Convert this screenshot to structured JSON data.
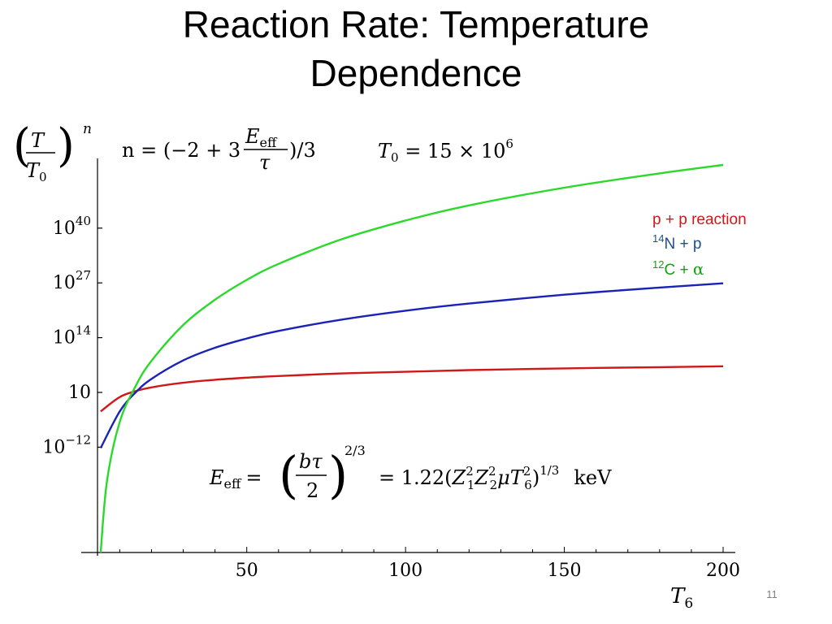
{
  "slide": {
    "title_line1": "Reaction Rate: Temperature",
    "title_line2": "Dependence",
    "page_number": "11"
  },
  "formulas": {
    "n_def": {
      "lhs": "n = (−2 + 3",
      "frac_num_base": "E",
      "frac_num_sub": "eff",
      "frac_den": "τ",
      "rhs": ")/3"
    },
    "t0_def": {
      "base": "T",
      "sub": "0",
      "mid": " = 15 × 10",
      "exp": "6"
    },
    "e_eff_def": {
      "lhs_base": "E",
      "lhs_sub": "eff",
      "eq": "=",
      "frac_num": "bτ",
      "frac_den": "2",
      "exp": "2/3",
      "rhs": "= 1.22(",
      "z1": "Z",
      "z1_sub": "1",
      "z1_sup": "2",
      "z2": "Z",
      "z2_sub": "2",
      "z2_sup": "2",
      "mu": "μ",
      "t6": "T",
      "t6_sub": "6",
      "t6_sup": "2",
      "close": ")",
      "close_sup": "1/3",
      "unit": "keV"
    },
    "y_label": {
      "num": "T",
      "den_base": "T",
      "den_sub": "0",
      "exp": "n"
    }
  },
  "chart_data": {
    "type": "line",
    "x_axis": {
      "label_base": "T",
      "label_sub": "6",
      "range": [
        3,
        200
      ],
      "ticks": [
        {
          "value": 50,
          "label": "50"
        },
        {
          "value": 100,
          "label": "100"
        },
        {
          "value": 150,
          "label": "150"
        },
        {
          "value": 200,
          "label": "200"
        }
      ]
    },
    "y_axis": {
      "scale": "log10",
      "range_exp": [
        -37,
        55
      ],
      "ticks": [
        {
          "exp": 40,
          "label_base": "10",
          "label_sup": "40"
        },
        {
          "exp": 27,
          "label_base": "10",
          "label_sup": "27"
        },
        {
          "exp": 14,
          "label_base": "10",
          "label_sup": "14"
        },
        {
          "exp": 1,
          "label_base": "10",
          "label_sup": ""
        },
        {
          "exp": -12,
          "label_base": "10",
          "label_sup": "−12"
        }
      ]
    },
    "series": [
      {
        "name": "p + p reaction",
        "color": "#d01818",
        "x": [
          4,
          10,
          15,
          20,
          30,
          40,
          50,
          60,
          80,
          100,
          120,
          150,
          180,
          200
        ],
        "log10_y": [
          -3.5,
          -0.1,
          1.3,
          2.2,
          3.3,
          4.0,
          4.5,
          4.9,
          5.5,
          5.9,
          6.3,
          6.7,
          7.0,
          7.2
        ]
      },
      {
        "name": "N + p",
        "name_sup": "14",
        "color": "#1a22b8",
        "x": [
          4,
          10,
          15,
          20,
          30,
          40,
          50,
          60,
          80,
          100,
          120,
          150,
          180,
          200
        ],
        "log10_y": [
          -12.2,
          -3.5,
          1.0,
          4.2,
          8.6,
          11.6,
          13.8,
          15.6,
          18.3,
          20.4,
          22.1,
          24.2,
          25.9,
          26.9
        ]
      },
      {
        "name": "C + ",
        "name_sup": "12",
        "name_greek": "α",
        "color": "#2ad92a",
        "x": [
          4,
          6,
          10,
          15,
          20,
          30,
          40,
          50,
          60,
          80,
          100,
          120,
          150,
          180,
          200
        ],
        "log10_y": [
          -37,
          -20,
          -6,
          2.5,
          8.5,
          17,
          23,
          27.7,
          31.5,
          37.4,
          41.8,
          45.4,
          49.6,
          53.0,
          55.0
        ]
      }
    ],
    "legend_position": "top-right",
    "grid": false
  }
}
